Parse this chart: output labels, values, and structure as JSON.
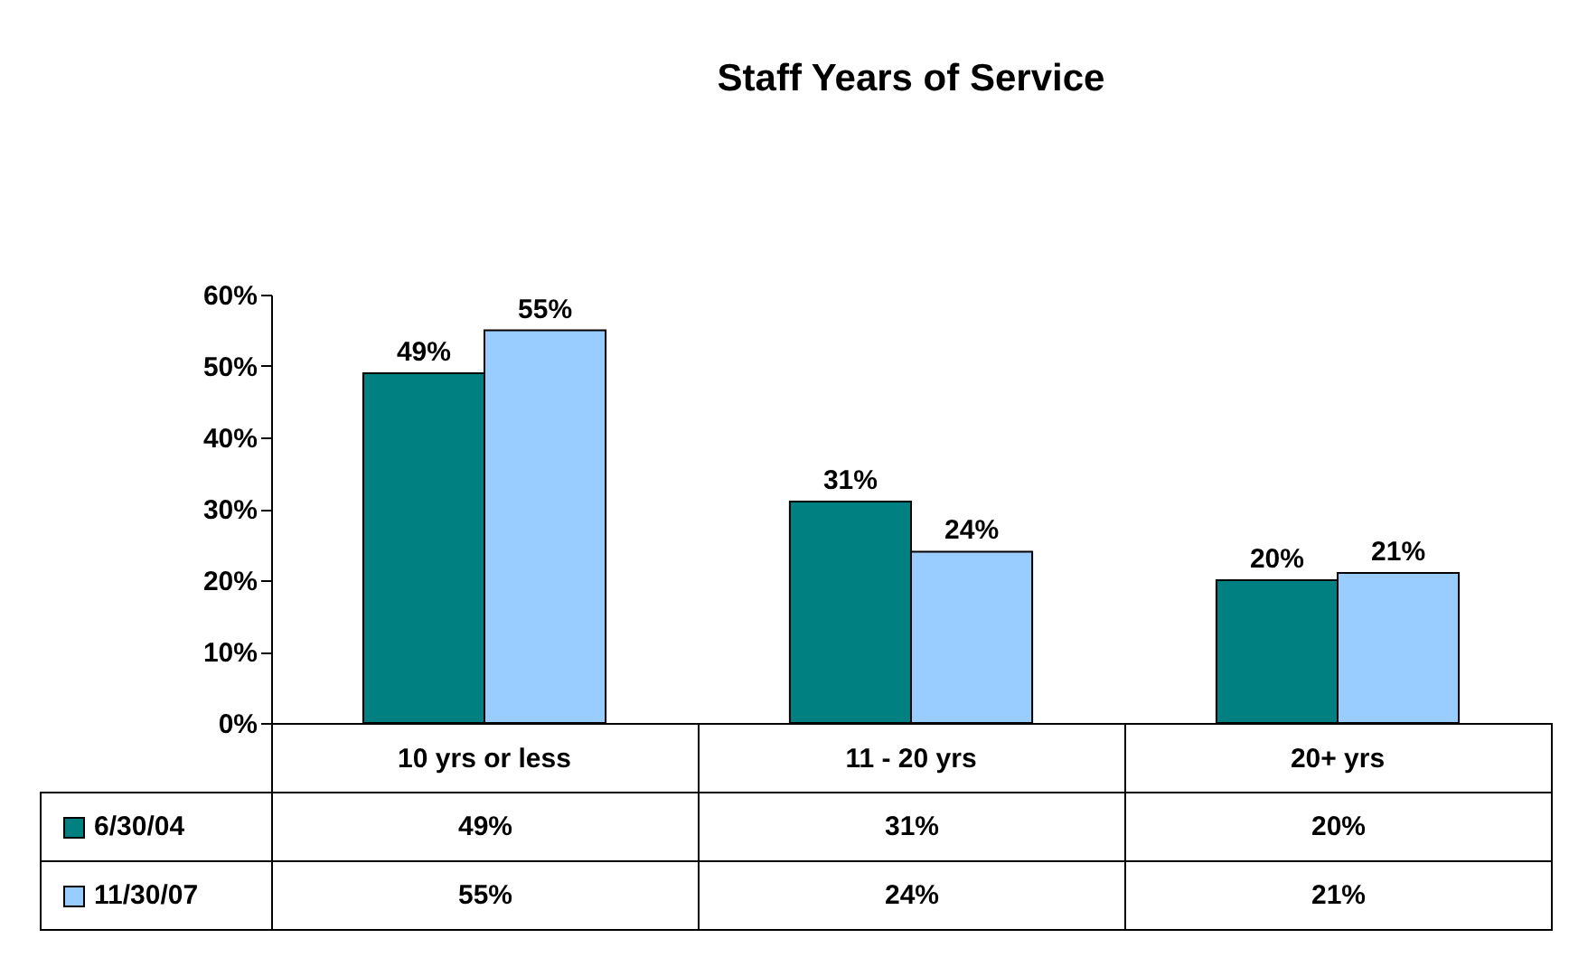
{
  "chart_data": {
    "type": "bar",
    "title": "Staff Years of Service",
    "categories": [
      "10 yrs or less",
      "11 - 20 yrs",
      "20+ yrs"
    ],
    "series": [
      {
        "name": "6/30/04",
        "color": "#008080",
        "values": [
          49,
          31,
          20
        ],
        "value_labels": [
          "49%",
          "31%",
          "20%"
        ]
      },
      {
        "name": "11/30/07",
        "color": "#99ccff",
        "values": [
          55,
          24,
          21
        ],
        "value_labels": [
          "55%",
          "24%",
          "21%"
        ]
      }
    ],
    "ylim": [
      0,
      60
    ],
    "yticks": [
      {
        "value": 0,
        "label": "0%"
      },
      {
        "value": 10,
        "label": "10%"
      },
      {
        "value": 20,
        "label": "20%"
      },
      {
        "value": 30,
        "label": "30%"
      },
      {
        "value": 40,
        "label": "40%"
      },
      {
        "value": 50,
        "label": "50%"
      },
      {
        "value": 60,
        "label": "60%"
      }
    ],
    "grid": false,
    "legend": "bottom left"
  }
}
